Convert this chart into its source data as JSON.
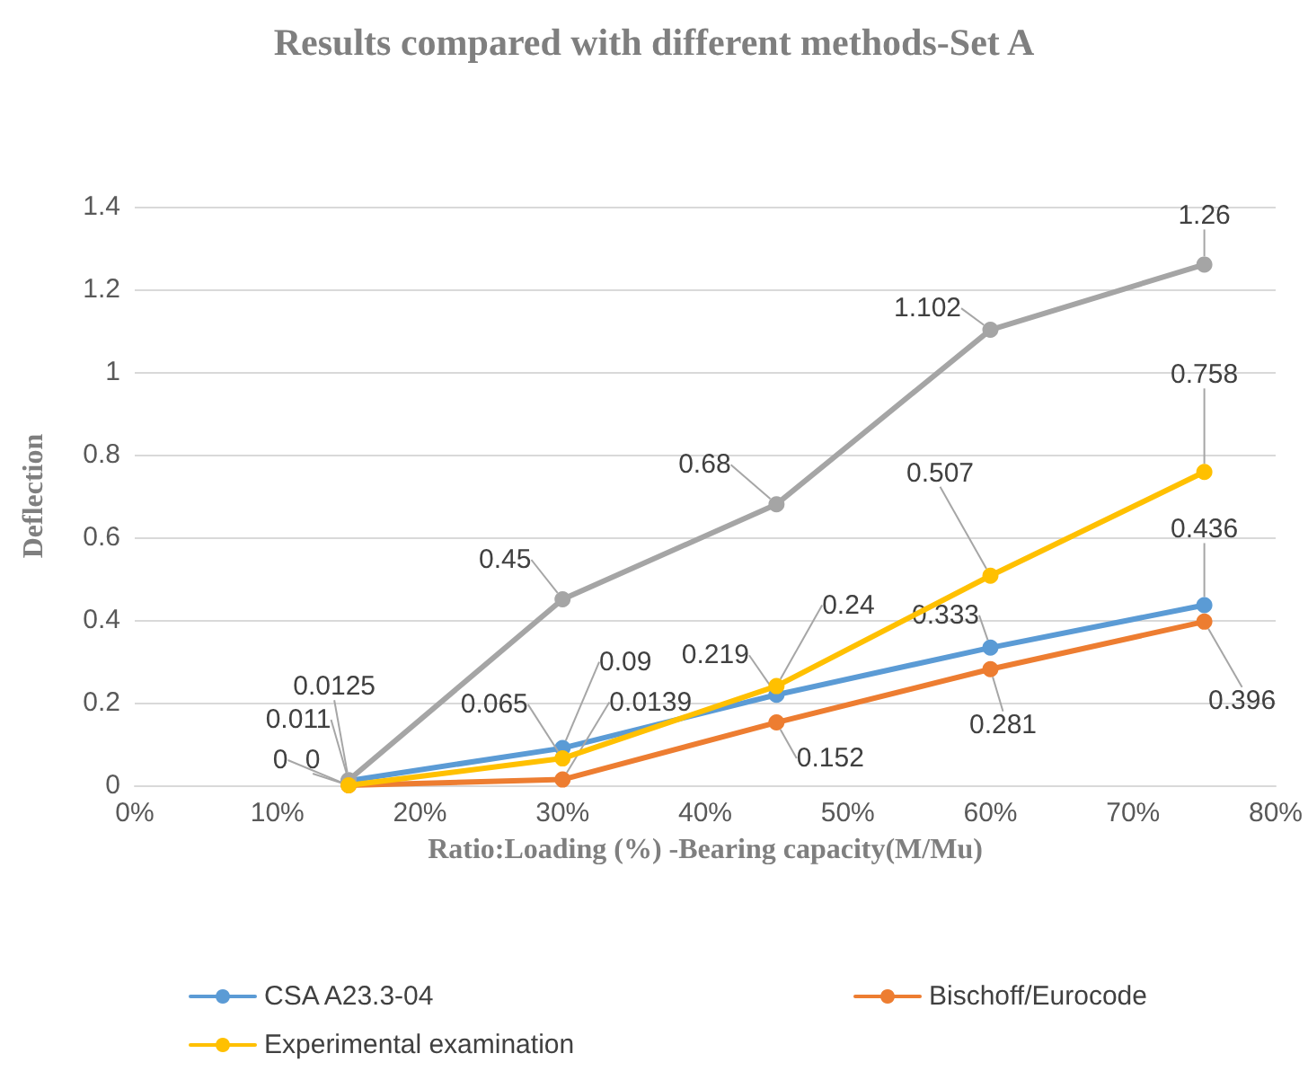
{
  "chart_data": {
    "type": "line",
    "title": "Results compared with different methods-Set A",
    "xlabel": "Ratio:Loading (%) -Bearing capacity(M/Mu)",
    "ylabel": "Deflection",
    "x": [
      15,
      30,
      45,
      60,
      75
    ],
    "xlim": [
      0,
      80
    ],
    "xticks": [
      {
        "value": 0,
        "label": "0%"
      },
      {
        "value": 10,
        "label": "10%"
      },
      {
        "value": 20,
        "label": "20%"
      },
      {
        "value": 30,
        "label": "30%"
      },
      {
        "value": 40,
        "label": "40%"
      },
      {
        "value": 50,
        "label": "50%"
      },
      {
        "value": 60,
        "label": "60%"
      },
      {
        "value": 70,
        "label": "70%"
      },
      {
        "value": 80,
        "label": "80%"
      }
    ],
    "ylim": [
      0,
      1.4
    ],
    "yticks": [
      0,
      0.2,
      0.4,
      0.6,
      0.8,
      1,
      1.2,
      1.4
    ],
    "series": [
      {
        "name": "CSA A23.3-04",
        "color": "#5b9bd5",
        "values": [
          0.011,
          0.09,
          0.219,
          0.333,
          0.436
        ]
      },
      {
        "name": "Bischoff/Eurocode",
        "color": "#ed7d31",
        "values": [
          0,
          0.0139,
          0.152,
          0.281,
          0.396
        ]
      },
      {
        "color": "#a5a5a5",
        "values": [
          0.0125,
          0.45,
          0.68,
          1.102,
          1.26
        ]
      },
      {
        "name": "Experimental examination",
        "color": "#ffc000",
        "values": [
          0,
          0.065,
          0.24,
          0.507,
          0.758
        ]
      }
    ],
    "data_labels": true,
    "grid": "y",
    "legend": "bottom",
    "marker": "circle",
    "line_style": "solid"
  }
}
